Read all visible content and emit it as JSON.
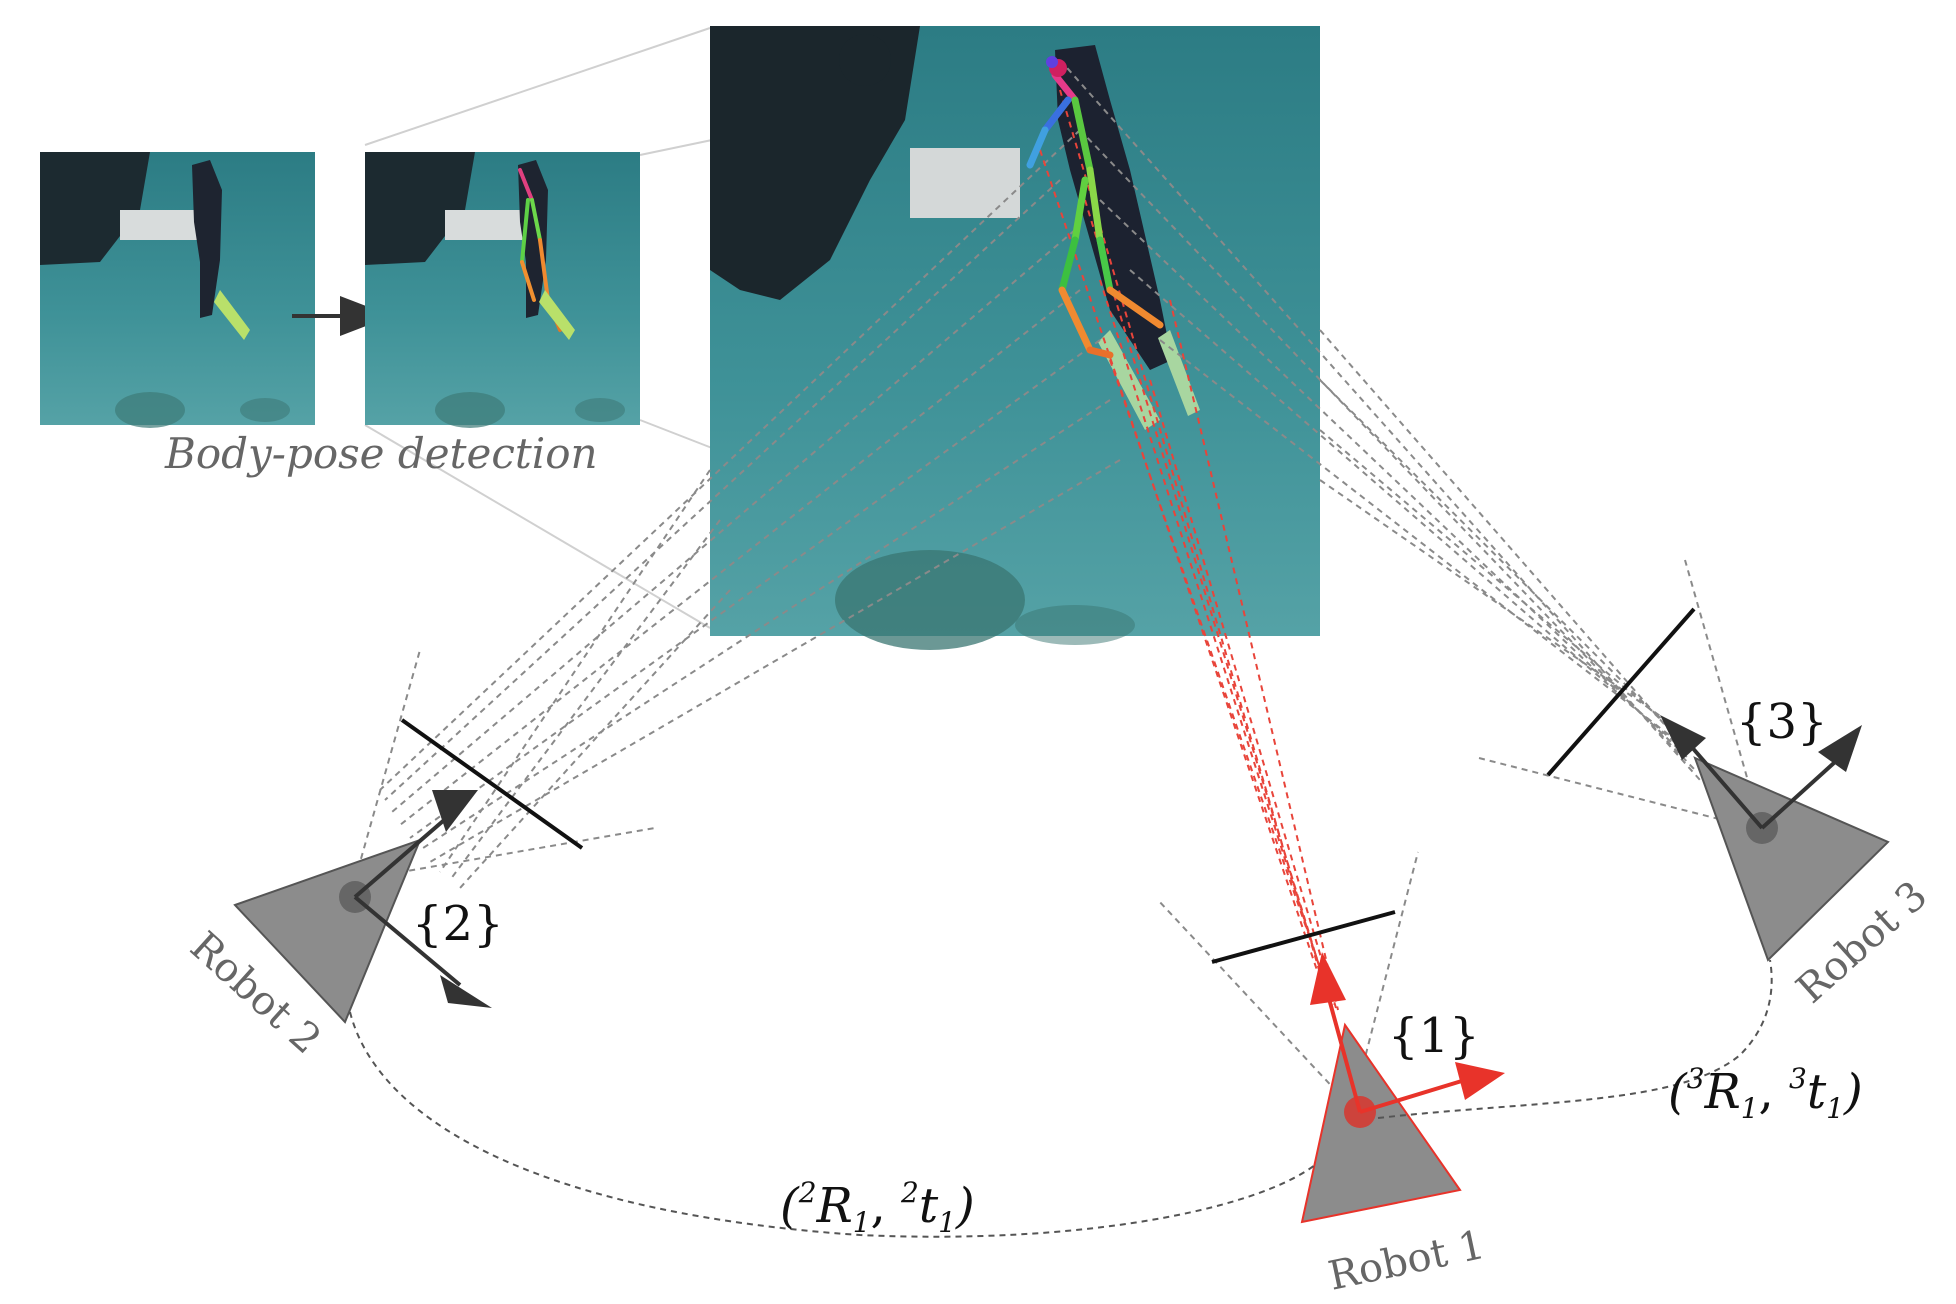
{
  "caption": "Body-pose detection",
  "frames": {
    "one": "{1}",
    "two": "{2}",
    "three": "{3}"
  },
  "robots": {
    "robot1": "Robot 1",
    "robot2": "Robot 2",
    "robot3": "Robot 3"
  },
  "transforms": {
    "t21": {
      "open": "(",
      "sup_r": "2",
      "r": "R",
      "sub_r": "1",
      "comma": ", ",
      "sup_t": "2",
      "t": "t",
      "sub_t": "1",
      "close": ")"
    },
    "t31": {
      "open": "(",
      "sup_r": "3",
      "r": "R",
      "sub_r": "1",
      "comma": ", ",
      "sup_t": "3",
      "t": "t",
      "sub_t": "1",
      "close": ")"
    }
  },
  "colors": {
    "water_top": "#2f7f86",
    "water_bottom": "#4a9aa0",
    "robot_fill": "#8c8c8c",
    "robot1_accent": "#e8332a",
    "dashed_gray": "#8a8a8a",
    "dashed_red": "#e8443a",
    "label_gray": "#666666"
  }
}
